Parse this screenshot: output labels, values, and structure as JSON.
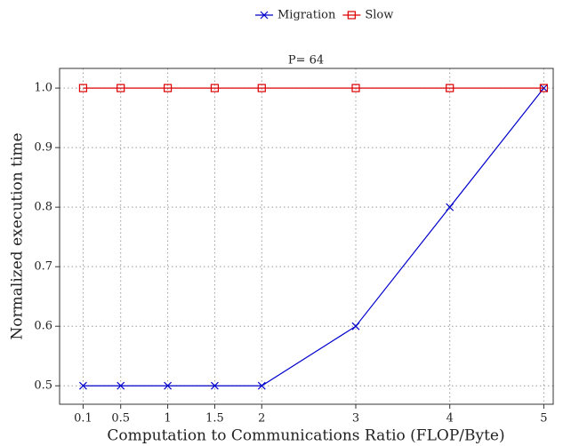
{
  "chart_data": {
    "type": "line",
    "title": "P= 64",
    "xlabel": "Computation to Communications Ratio (FLOP/Byte)",
    "ylabel": "Normalized execution time",
    "x": [
      0.1,
      0.5,
      1,
      1.5,
      2,
      3,
      4,
      5
    ],
    "series": [
      {
        "name": "Migration",
        "color": "#0000cc",
        "marker": "x",
        "values": [
          0.5,
          0.5,
          0.5,
          0.5,
          0.5,
          0.6,
          0.8,
          1.0
        ]
      },
      {
        "name": "Slow",
        "color": "#dd0000",
        "marker": "square",
        "values": [
          1.0,
          1.0,
          1.0,
          1.0,
          1.0,
          1.0,
          1.0,
          1.0
        ]
      }
    ],
    "xlim": [
      -0.15,
      5.1
    ],
    "ylim": [
      0.469,
      1.033
    ],
    "xticks": [
      0.1,
      0.5,
      1,
      1.5,
      2,
      3,
      4,
      5
    ],
    "yticks": [
      0.5,
      0.6,
      0.7,
      0.8,
      0.9,
      {
        "value": 1.0,
        "label": "1.0"
      }
    ],
    "grid": true,
    "legend": "top"
  }
}
